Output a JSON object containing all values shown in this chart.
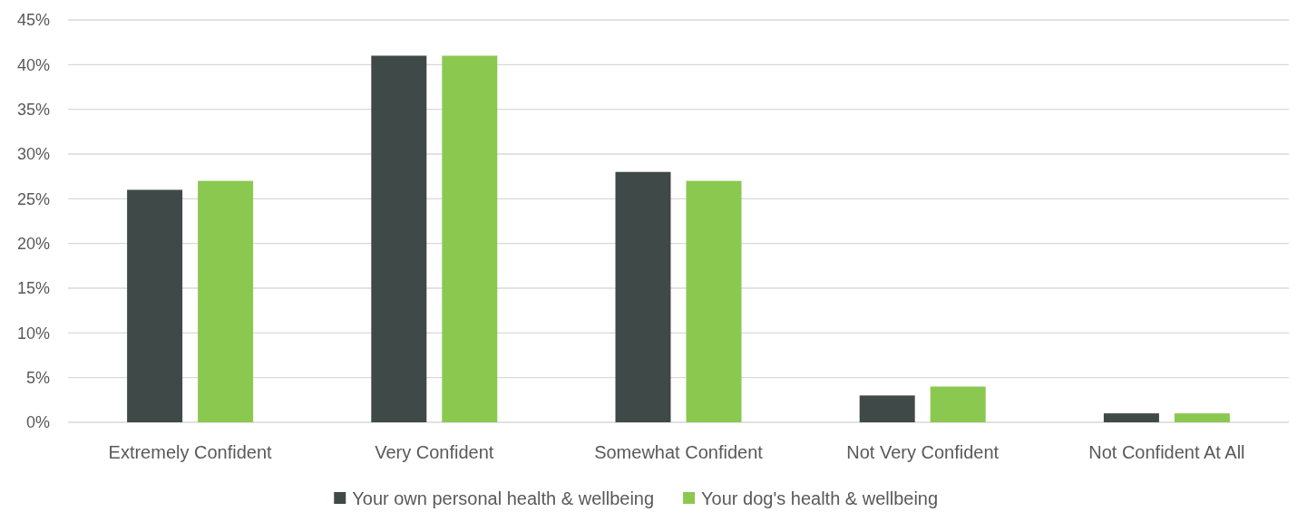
{
  "chart_data": {
    "type": "bar",
    "categories": [
      "Extremely Confident",
      "Very Confident",
      "Somewhat Confident",
      "Not Very Confident",
      "Not Confident At All"
    ],
    "series": [
      {
        "name": "Your own personal health & wellbeing",
        "color": "#3f4a48",
        "values": [
          26,
          41,
          28,
          3,
          1
        ]
      },
      {
        "name": "Your dog's health & wellbeing",
        "color": "#8bc850",
        "values": [
          27,
          41,
          27,
          4,
          1
        ]
      }
    ],
    "ylim": [
      0,
      45
    ],
    "yticks": [
      {
        "value": 0,
        "label": "0%"
      },
      {
        "value": 5,
        "label": "5%"
      },
      {
        "value": 10,
        "label": "10%"
      },
      {
        "value": 15,
        "label": "15%"
      },
      {
        "value": 20,
        "label": "20%"
      },
      {
        "value": 25,
        "label": "25%"
      },
      {
        "value": 30,
        "label": "30%"
      },
      {
        "value": 35,
        "label": "35%"
      },
      {
        "value": 40,
        "label": "40%"
      },
      {
        "value": 45,
        "label": "45%"
      }
    ],
    "grid": "y",
    "legend": "bottom"
  }
}
